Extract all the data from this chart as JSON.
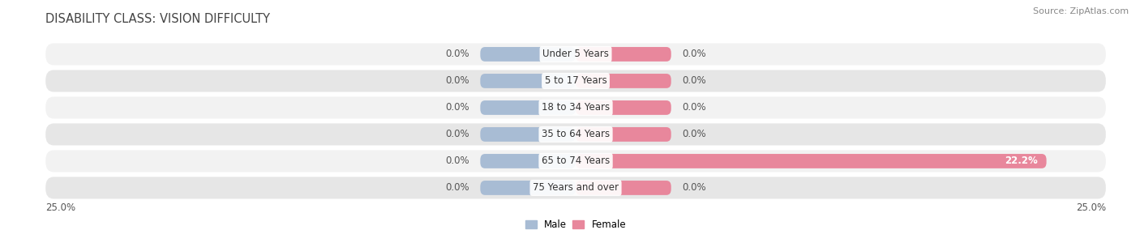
{
  "title": "DISABILITY CLASS: VISION DIFFICULTY",
  "source": "Source: ZipAtlas.com",
  "categories": [
    "Under 5 Years",
    "5 to 17 Years",
    "18 to 34 Years",
    "35 to 64 Years",
    "65 to 74 Years",
    "75 Years and over"
  ],
  "male_values": [
    0.0,
    0.0,
    0.0,
    0.0,
    0.0,
    0.0
  ],
  "female_values": [
    0.0,
    0.0,
    0.0,
    0.0,
    22.2,
    0.0
  ],
  "male_color": "#a8bcd4",
  "female_color": "#e8879c",
  "row_bg_light": "#f2f2f2",
  "row_bg_dark": "#e6e6e6",
  "xlim": 25.0,
  "min_bar_width": 4.5,
  "label_fontsize": 8.5,
  "category_fontsize": 8.5,
  "title_fontsize": 10.5,
  "source_fontsize": 8
}
